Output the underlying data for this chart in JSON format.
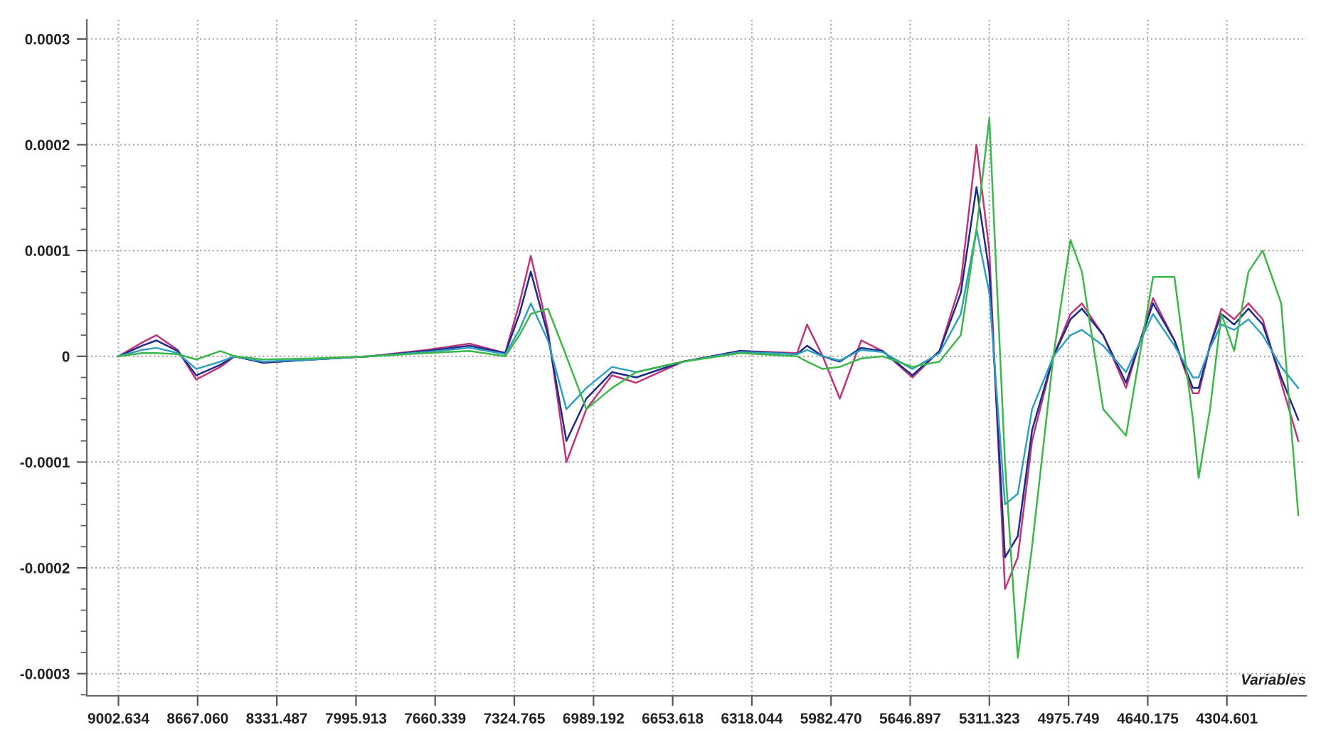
{
  "chart_data": {
    "type": "line",
    "xlabel": "Variables",
    "x": [
      9002.6,
      8902.4,
      8842.1,
      8751.5,
      8673.1,
      8570.5,
      8510.1,
      8389.4,
      8178.2,
      7936.8,
      7695.4,
      7514.4,
      7363.5,
      7303.1,
      7254.9,
      7182.4,
      7104.0,
      7019.5,
      6910.9,
      6808.3,
      6609.1,
      6367.7,
      6126.3,
      6084.1,
      6017.7,
      5945.3,
      5854.7,
      5764.2,
      5637.5,
      5522.8,
      5432.3,
      5365.9,
      5311.6,
      5245.2,
      5190.9,
      5130.5,
      5040.0,
      4967.6,
      4919.3,
      4828.8,
      4732.2,
      4617.6,
      4527.0,
      4448.6,
      4424.4,
      4376.2,
      4327.9,
      4273.6,
      4213.2,
      4152.9,
      4074.4,
      4002.0
    ],
    "series": [
      {
        "color": "#c0357a",
        "values": [
          0,
          1.3e-05,
          2e-05,
          6e-06,
          -2.2e-05,
          -1e-05,
          0,
          -6e-06,
          -3e-06,
          0,
          6e-06,
          1.2e-05,
          3e-06,
          5e-05,
          9.5e-05,
          2.5e-05,
          -0.0001,
          -5e-05,
          -1.8e-05,
          -2.5e-05,
          -5e-06,
          5e-06,
          3e-06,
          3e-05,
          0,
          -4e-05,
          1.5e-05,
          5e-06,
          -2e-05,
          5e-06,
          7e-05,
          0.0002,
          0.0001,
          -0.00022,
          -0.00019,
          -8e-05,
          0,
          4e-05,
          5e-05,
          2e-05,
          -3e-05,
          5.5e-05,
          1.5e-05,
          -3.5e-05,
          -3.5e-05,
          1e-05,
          4.5e-05,
          3.5e-05,
          5e-05,
          3.5e-05,
          -2.5e-05,
          -8e-05
        ]
      },
      {
        "color": "#1f2a8c",
        "values": [
          0,
          1e-05,
          1.5e-05,
          5e-06,
          -1.8e-05,
          -8e-06,
          0,
          -6e-06,
          -3e-06,
          0,
          5e-06,
          1e-05,
          3e-06,
          4e-05,
          8e-05,
          2e-05,
          -8e-05,
          -4e-05,
          -1.5e-05,
          -2e-05,
          -5e-06,
          5e-06,
          2e-06,
          1e-05,
          0,
          -5e-06,
          8e-06,
          5e-06,
          -1.8e-05,
          5e-06,
          6e-05,
          0.00016,
          8e-05,
          -0.00019,
          -0.00017,
          -7e-05,
          0,
          3.5e-05,
          4.5e-05,
          2e-05,
          -2.5e-05,
          5e-05,
          1.5e-05,
          -3e-05,
          -3e-05,
          1e-05,
          4e-05,
          3e-05,
          4.5e-05,
          3e-05,
          -2e-05,
          -6e-05
        ]
      },
      {
        "color": "#30a0c0",
        "values": [
          0,
          6e-06,
          8e-06,
          3e-06,
          -1.2e-05,
          -5e-06,
          0,
          -5e-06,
          -3e-06,
          0,
          4e-06,
          8e-06,
          2e-06,
          2.5e-05,
          5e-05,
          1.5e-05,
          -5e-05,
          -3e-05,
          -1e-05,
          -1.5e-05,
          -5e-06,
          4e-06,
          2e-06,
          6e-06,
          0,
          -4e-06,
          6e-06,
          4e-06,
          -1.2e-05,
          3e-06,
          4e-05,
          0.00012,
          6e-05,
          -0.00014,
          -0.00013,
          -5e-05,
          0,
          2e-05,
          2.5e-05,
          1e-05,
          -1.5e-05,
          4e-05,
          1e-05,
          -2e-05,
          -2e-05,
          8e-06,
          3e-05,
          2.5e-05,
          3.5e-05,
          2e-05,
          -1e-05,
          -3e-05
        ]
      },
      {
        "color": "#3cb84a",
        "values": [
          0,
          3e-06,
          3e-06,
          2e-06,
          -3e-06,
          5e-06,
          0,
          -3e-06,
          -2e-06,
          0,
          3e-06,
          5e-06,
          0,
          2e-05,
          4e-05,
          4.5e-05,
          0,
          -5e-05,
          -3e-05,
          -1.5e-05,
          -5e-06,
          3e-06,
          0,
          -5e-06,
          -1.2e-05,
          -1e-05,
          -2e-06,
          0,
          -1e-05,
          -5e-06,
          2e-05,
          0.00012,
          0.000225,
          -0.0001,
          -0.000285,
          -0.00018,
          0,
          0.00011,
          8e-05,
          -5e-05,
          -7.5e-05,
          7.5e-05,
          7.5e-05,
          -6e-05,
          -0.000115,
          -5e-05,
          4e-05,
          5e-06,
          8e-05,
          0.0001,
          5e-05,
          -0.00015
        ]
      }
    ],
    "xlim": [
      9136.9,
      3969.0
    ],
    "xticks": [
      {
        "value": 9002.634,
        "label": "9002.634"
      },
      {
        "value": 8667.06,
        "label": "8667.060"
      },
      {
        "value": 8331.487,
        "label": "8331.487"
      },
      {
        "value": 7995.913,
        "label": "7995.913"
      },
      {
        "value": 7660.339,
        "label": "7660.339"
      },
      {
        "value": 7324.765,
        "label": "7324.765"
      },
      {
        "value": 6989.192,
        "label": "6989.192"
      },
      {
        "value": 6653.618,
        "label": "6653.618"
      },
      {
        "value": 6318.044,
        "label": "6318.044"
      },
      {
        "value": 5982.47,
        "label": "5982.470"
      },
      {
        "value": 5646.897,
        "label": "5646.897"
      },
      {
        "value": 5311.323,
        "label": "5311.323"
      },
      {
        "value": 4975.749,
        "label": "4975.749"
      },
      {
        "value": 4640.175,
        "label": "4640.175"
      },
      {
        "value": 4304.601,
        "label": "4304.601"
      }
    ],
    "ylim": [
      -0.000321,
      0.000318
    ],
    "yticks": [
      0.0003,
      0.0002,
      0.0001,
      0,
      -0.0001,
      -0.0002,
      -0.0003
    ],
    "grid": true,
    "marker": "none",
    "line_style": "solid"
  }
}
